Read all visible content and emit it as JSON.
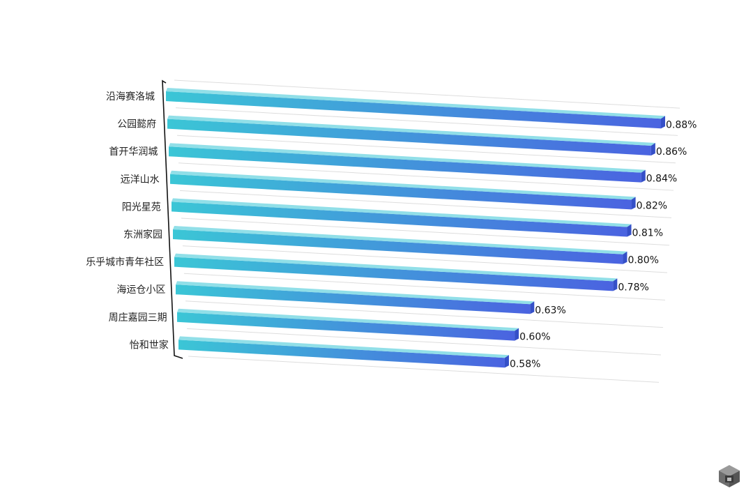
{
  "chart_data": {
    "type": "bar",
    "orientation": "horizontal",
    "categories": [
      "沿海赛洛城",
      "公园懿府",
      "首开华润城",
      "远洋山水",
      "阳光星苑",
      "东洲家园",
      "乐乎城市青年社区",
      "海运仓小区",
      "周庄嘉园三期",
      "怡和世家"
    ],
    "values": [
      0.88,
      0.86,
      0.84,
      0.82,
      0.81,
      0.8,
      0.78,
      0.63,
      0.6,
      0.58
    ],
    "value_labels": [
      "0.88%",
      "0.86%",
      "0.84%",
      "0.82%",
      "0.81%",
      "0.80%",
      "0.78%",
      "0.63%",
      "0.60%",
      "0.58%"
    ],
    "title": "",
    "xlabel": "",
    "ylabel": "",
    "grid": true,
    "legend": "none"
  },
  "colors": {
    "bar_start": "#3bc6d6",
    "bar_end": "#4a63e0",
    "bar_top": "#7ed9e4",
    "bar_end_face": "#3550c8",
    "grid": "#dddddd",
    "axis": "#111111"
  },
  "logo": {
    "icon": "cube-logo-icon"
  }
}
